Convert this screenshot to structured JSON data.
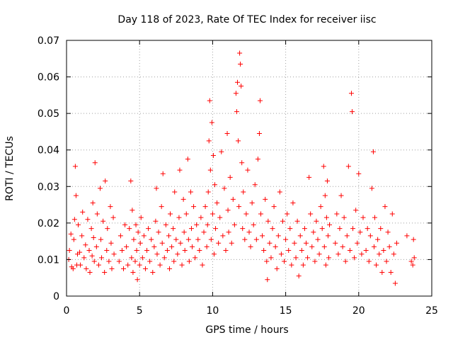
{
  "chart_data": {
    "type": "scatter",
    "title": "Day 118 of 2023, Rate Of TEC Index for receiver iisc",
    "xlabel": "GPS time / hours",
    "ylabel": "ROTI / TECUs",
    "xlim": [
      0,
      25
    ],
    "ylim": [
      0,
      0.07
    ],
    "x_ticks": [
      0,
      5,
      10,
      15,
      20,
      25
    ],
    "y_ticks": [
      0,
      0.01,
      0.02,
      0.03,
      0.04,
      0.05,
      0.06,
      0.07
    ],
    "x_tick_labels": [
      "0",
      "5",
      "10",
      "15",
      "20",
      "25"
    ],
    "y_tick_labels": [
      "0",
      "0.01",
      "0.02",
      "0.03",
      "0.04",
      "0.05",
      "0.06",
      "0.07"
    ],
    "grid": true,
    "marker": "+",
    "marker_color": "#ff0000",
    "points": [
      [
        0.15,
        0.01
      ],
      [
        0.2,
        0.0125
      ],
      [
        0.3,
        0.017
      ],
      [
        0.35,
        0.008
      ],
      [
        0.45,
        0.0075
      ],
      [
        0.5,
        0.0155
      ],
      [
        0.55,
        0.021
      ],
      [
        0.6,
        0.0355
      ],
      [
        0.65,
        0.0275
      ],
      [
        0.7,
        0.0085
      ],
      [
        0.75,
        0.0115
      ],
      [
        0.8,
        0.0195
      ],
      [
        0.9,
        0.012
      ],
      [
        0.95,
        0.0085
      ],
      [
        1.05,
        0.0165
      ],
      [
        1.1,
        0.023
      ],
      [
        1.2,
        0.0105
      ],
      [
        1.3,
        0.014
      ],
      [
        1.35,
        0.0075
      ],
      [
        1.45,
        0.021
      ],
      [
        1.55,
        0.0125
      ],
      [
        1.6,
        0.0065
      ],
      [
        1.7,
        0.0185
      ],
      [
        1.75,
        0.011
      ],
      [
        1.8,
        0.0255
      ],
      [
        1.85,
        0.016
      ],
      [
        1.9,
        0.0095
      ],
      [
        1.95,
        0.0365
      ],
      [
        2.05,
        0.0135
      ],
      [
        2.1,
        0.0225
      ],
      [
        2.2,
        0.0085
      ],
      [
        2.3,
        0.0295
      ],
      [
        2.35,
        0.0155
      ],
      [
        2.4,
        0.0105
      ],
      [
        2.5,
        0.0205
      ],
      [
        2.6,
        0.0065
      ],
      [
        2.65,
        0.0315
      ],
      [
        2.75,
        0.0125
      ],
      [
        2.8,
        0.0185
      ],
      [
        2.9,
        0.0095
      ],
      [
        3.0,
        0.0245
      ],
      [
        3.05,
        0.0145
      ],
      [
        3.1,
        0.0075
      ],
      [
        3.2,
        0.0215
      ],
      [
        3.25,
        0.0115
      ],
      [
        3.6,
        0.0095
      ],
      [
        3.7,
        0.0165
      ],
      [
        3.8,
        0.0125
      ],
      [
        3.9,
        0.0075
      ],
      [
        4.0,
        0.0195
      ],
      [
        4.1,
        0.0135
      ],
      [
        4.2,
        0.0085
      ],
      [
        4.3,
        0.0185
      ],
      [
        4.4,
        0.0315
      ],
      [
        4.45,
        0.0105
      ],
      [
        4.5,
        0.0235
      ],
      [
        4.55,
        0.0065
      ],
      [
        4.6,
        0.0155
      ],
      [
        4.7,
        0.0095
      ],
      [
        4.75,
        0.0195
      ],
      [
        4.8,
        0.0125
      ],
      [
        4.85,
        0.0045
      ],
      [
        4.9,
        0.0175
      ],
      [
        5.0,
        0.0085
      ],
      [
        5.05,
        0.0145
      ],
      [
        5.1,
        0.0215
      ],
      [
        5.2,
        0.0105
      ],
      [
        5.3,
        0.0165
      ],
      [
        5.4,
        0.0075
      ],
      [
        5.5,
        0.0125
      ],
      [
        5.6,
        0.0185
      ],
      [
        5.7,
        0.0095
      ],
      [
        5.8,
        0.0155
      ],
      [
        5.9,
        0.0065
      ],
      [
        6.0,
        0.0135
      ],
      [
        6.1,
        0.0205
      ],
      [
        6.15,
        0.0295
      ],
      [
        6.2,
        0.0115
      ],
      [
        6.3,
        0.0175
      ],
      [
        6.4,
        0.0085
      ],
      [
        6.5,
        0.0245
      ],
      [
        6.55,
        0.0145
      ],
      [
        6.6,
        0.0335
      ],
      [
        6.7,
        0.0105
      ],
      [
        6.8,
        0.0195
      ],
      [
        6.9,
        0.0125
      ],
      [
        7.0,
        0.0165
      ],
      [
        7.05,
        0.0075
      ],
      [
        7.1,
        0.0225
      ],
      [
        7.2,
        0.0135
      ],
      [
        7.3,
        0.0185
      ],
      [
        7.35,
        0.0095
      ],
      [
        7.4,
        0.0285
      ],
      [
        7.5,
        0.0155
      ],
      [
        7.6,
        0.0115
      ],
      [
        7.7,
        0.0215
      ],
      [
        7.75,
        0.0345
      ],
      [
        7.8,
        0.0145
      ],
      [
        7.9,
        0.0085
      ],
      [
        8.0,
        0.0265
      ],
      [
        8.05,
        0.0175
      ],
      [
        8.1,
        0.0125
      ],
      [
        8.2,
        0.0225
      ],
      [
        8.3,
        0.0375
      ],
      [
        8.35,
        0.0155
      ],
      [
        8.4,
        0.0095
      ],
      [
        8.5,
        0.0285
      ],
      [
        8.55,
        0.0185
      ],
      [
        8.6,
        0.0135
      ],
      [
        8.7,
        0.0245
      ],
      [
        8.8,
        0.0105
      ],
      [
        8.9,
        0.0195
      ],
      [
        9.0,
        0.0155
      ],
      [
        9.1,
        0.0125
      ],
      [
        9.2,
        0.0215
      ],
      [
        9.3,
        0.0085
      ],
      [
        9.4,
        0.0175
      ],
      [
        9.5,
        0.0245
      ],
      [
        9.6,
        0.0135
      ],
      [
        9.65,
        0.0195
      ],
      [
        9.7,
        0.0285
      ],
      [
        9.75,
        0.0425
      ],
      [
        9.8,
        0.0535
      ],
      [
        9.85,
        0.0345
      ],
      [
        9.9,
        0.0155
      ],
      [
        9.95,
        0.0475
      ],
      [
        10.0,
        0.0225
      ],
      [
        10.05,
        0.0385
      ],
      [
        10.1,
        0.0115
      ],
      [
        10.15,
        0.0305
      ],
      [
        10.2,
        0.0185
      ],
      [
        10.3,
        0.0255
      ],
      [
        10.4,
        0.0145
      ],
      [
        10.5,
        0.0215
      ],
      [
        10.6,
        0.0395
      ],
      [
        10.7,
        0.0165
      ],
      [
        10.8,
        0.0295
      ],
      [
        10.9,
        0.0125
      ],
      [
        11.0,
        0.0445
      ],
      [
        11.05,
        0.0235
      ],
      [
        11.1,
        0.0175
      ],
      [
        11.2,
        0.0325
      ],
      [
        11.3,
        0.0145
      ],
      [
        11.4,
        0.0265
      ],
      [
        11.5,
        0.0195
      ],
      [
        11.6,
        0.0555
      ],
      [
        11.65,
        0.0505
      ],
      [
        11.7,
        0.0585
      ],
      [
        11.75,
        0.0425
      ],
      [
        11.8,
        0.0245
      ],
      [
        11.85,
        0.0665
      ],
      [
        11.9,
        0.0635
      ],
      [
        11.95,
        0.0575
      ],
      [
        12.0,
        0.0365
      ],
      [
        12.05,
        0.0185
      ],
      [
        12.1,
        0.0285
      ],
      [
        12.2,
        0.0155
      ],
      [
        12.3,
        0.0225
      ],
      [
        12.4,
        0.0345
      ],
      [
        12.5,
        0.0175
      ],
      [
        12.6,
        0.0135
      ],
      [
        12.7,
        0.0255
      ],
      [
        12.8,
        0.0195
      ],
      [
        12.9,
        0.0305
      ],
      [
        13.0,
        0.0155
      ],
      [
        13.1,
        0.0375
      ],
      [
        13.2,
        0.0445
      ],
      [
        13.25,
        0.0535
      ],
      [
        13.3,
        0.0225
      ],
      [
        13.4,
        0.0165
      ],
      [
        13.5,
        0.0125
      ],
      [
        13.6,
        0.0265
      ],
      [
        13.7,
        0.0095
      ],
      [
        13.75,
        0.0045
      ],
      [
        13.8,
        0.0205
      ],
      [
        13.9,
        0.0145
      ],
      [
        14.0,
        0.0105
      ],
      [
        14.1,
        0.0185
      ],
      [
        14.2,
        0.0245
      ],
      [
        14.3,
        0.0135
      ],
      [
        14.4,
        0.0075
      ],
      [
        14.5,
        0.0165
      ],
      [
        14.6,
        0.0285
      ],
      [
        14.7,
        0.0115
      ],
      [
        14.8,
        0.0205
      ],
      [
        14.9,
        0.0095
      ],
      [
        15.0,
        0.0155
      ],
      [
        15.1,
        0.0225
      ],
      [
        15.2,
        0.0125
      ],
      [
        15.3,
        0.0185
      ],
      [
        15.4,
        0.0085
      ],
      [
        15.5,
        0.0255
      ],
      [
        15.6,
        0.0145
      ],
      [
        15.7,
        0.0105
      ],
      [
        15.8,
        0.0205
      ],
      [
        15.9,
        0.0055
      ],
      [
        16.0,
        0.0165
      ],
      [
        16.1,
        0.0125
      ],
      [
        16.2,
        0.0085
      ],
      [
        16.3,
        0.0185
      ],
      [
        16.4,
        0.0145
      ],
      [
        16.5,
        0.0105
      ],
      [
        16.6,
        0.0325
      ],
      [
        16.7,
        0.0225
      ],
      [
        16.8,
        0.0135
      ],
      [
        16.9,
        0.0175
      ],
      [
        17.0,
        0.0095
      ],
      [
        17.1,
        0.0205
      ],
      [
        17.2,
        0.0155
      ],
      [
        17.3,
        0.0115
      ],
      [
        17.4,
        0.0245
      ],
      [
        17.5,
        0.0185
      ],
      [
        17.6,
        0.0355
      ],
      [
        17.65,
        0.0135
      ],
      [
        17.7,
        0.0275
      ],
      [
        17.75,
        0.0085
      ],
      [
        17.8,
        0.0215
      ],
      [
        17.85,
        0.0315
      ],
      [
        17.9,
        0.0165
      ],
      [
        17.95,
        0.0105
      ],
      [
        18.0,
        0.0195
      ],
      [
        18.4,
        0.0145
      ],
      [
        18.5,
        0.0225
      ],
      [
        18.6,
        0.0115
      ],
      [
        18.7,
        0.0185
      ],
      [
        18.8,
        0.0275
      ],
      [
        18.9,
        0.0135
      ],
      [
        19.0,
        0.0215
      ],
      [
        19.1,
        0.0095
      ],
      [
        19.2,
        0.0165
      ],
      [
        19.3,
        0.0355
      ],
      [
        19.4,
        0.0125
      ],
      [
        19.5,
        0.0555
      ],
      [
        19.55,
        0.0505
      ],
      [
        19.6,
        0.0185
      ],
      [
        19.7,
        0.0105
      ],
      [
        19.8,
        0.0235
      ],
      [
        19.9,
        0.0145
      ],
      [
        20.0,
        0.0335
      ],
      [
        20.1,
        0.0175
      ],
      [
        20.2,
        0.0115
      ],
      [
        20.3,
        0.0215
      ],
      [
        20.5,
        0.0125
      ],
      [
        20.6,
        0.0185
      ],
      [
        20.7,
        0.0095
      ],
      [
        20.8,
        0.0165
      ],
      [
        20.9,
        0.0295
      ],
      [
        21.0,
        0.0395
      ],
      [
        21.05,
        0.0135
      ],
      [
        21.1,
        0.0215
      ],
      [
        21.2,
        0.0085
      ],
      [
        21.3,
        0.0155
      ],
      [
        21.4,
        0.0115
      ],
      [
        21.5,
        0.0185
      ],
      [
        21.6,
        0.0065
      ],
      [
        21.7,
        0.0125
      ],
      [
        21.8,
        0.0245
      ],
      [
        21.9,
        0.0095
      ],
      [
        22.0,
        0.0175
      ],
      [
        22.1,
        0.0135
      ],
      [
        22.2,
        0.0065
      ],
      [
        22.3,
        0.0225
      ],
      [
        22.4,
        0.0115
      ],
      [
        22.5,
        0.0035
      ],
      [
        22.6,
        0.0145
      ],
      [
        23.3,
        0.0165
      ],
      [
        23.6,
        0.0095
      ],
      [
        23.7,
        0.0085
      ],
      [
        23.75,
        0.0155
      ],
      [
        23.8,
        0.0105
      ]
    ]
  }
}
